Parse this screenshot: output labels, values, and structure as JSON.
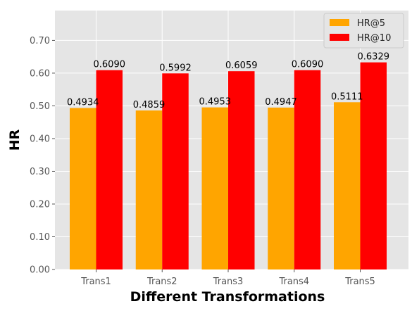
{
  "chart_data": {
    "type": "bar",
    "categories": [
      "Trans1",
      "Trans2",
      "Trans3",
      "Trans4",
      "Trans5"
    ],
    "series": [
      {
        "name": "HR@5",
        "values": [
          0.4934,
          0.4859,
          0.4953,
          0.4947,
          0.5111
        ],
        "labels": [
          "0.4934",
          "0.4859",
          "0.4953",
          "0.4947",
          "0.5111"
        ],
        "color": "#ffa500"
      },
      {
        "name": "HR@10",
        "values": [
          0.609,
          0.5992,
          0.6059,
          0.609,
          0.6329
        ],
        "labels": [
          "0.6090",
          "0.5992",
          "0.6059",
          "0.6090",
          "0.6329"
        ],
        "color": "#ff0000"
      }
    ],
    "xlabel": "Different Transformations",
    "ylabel": "HR",
    "ylim": [
      0,
      0.7912
    ],
    "yticks": [
      0.0,
      0.1,
      0.2,
      0.3,
      0.4,
      0.5,
      0.6,
      0.7
    ],
    "ytick_labels": [
      "0.00",
      "0.10",
      "0.20",
      "0.30",
      "0.40",
      "0.50",
      "0.60",
      "0.70"
    ],
    "grid": true,
    "legend_position": "top-right",
    "background_color": "#e5e5e5"
  }
}
